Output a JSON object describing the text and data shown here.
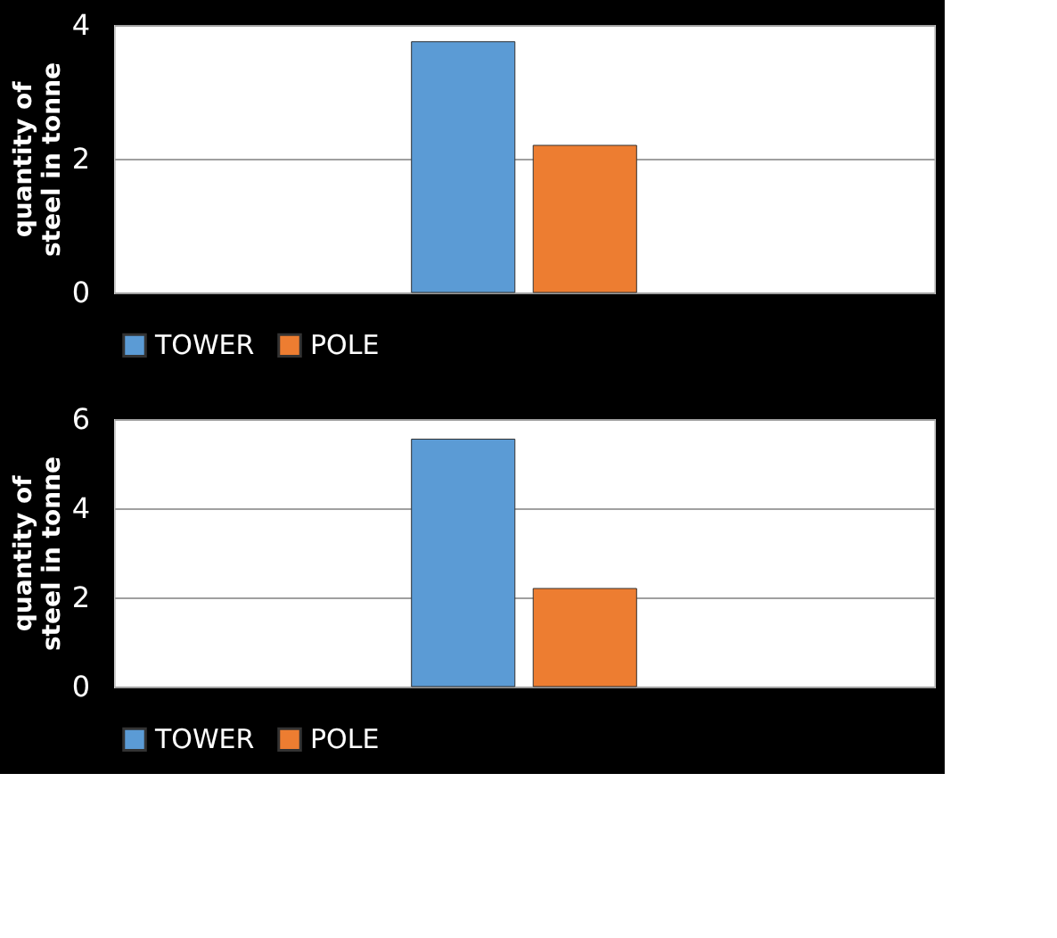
{
  "chart_data": [
    {
      "type": "bar",
      "categories": [
        null
      ],
      "ylabel": "quantity of steel in tonne",
      "ylim": [
        0,
        4
      ],
      "yticks": [
        0,
        2,
        4
      ],
      "grid": "y",
      "legend": "bottom",
      "series": [
        {
          "name": "TOWER",
          "color": "#5b9bd5",
          "values": [
            3.75
          ]
        },
        {
          "name": "POLE",
          "color": "#ed7d31",
          "values": [
            2.2
          ]
        }
      ]
    },
    {
      "type": "bar",
      "categories": [
        null
      ],
      "ylabel": "quantity of steel in tonne",
      "ylim": [
        0,
        6
      ],
      "yticks": [
        0,
        2,
        4,
        6
      ],
      "grid": "y",
      "legend": "bottom",
      "series": [
        {
          "name": "TOWER",
          "color": "#5b9bd5",
          "values": [
            5.55
          ]
        },
        {
          "name": "POLE",
          "color": "#ed7d31",
          "values": [
            2.2
          ]
        }
      ]
    }
  ]
}
